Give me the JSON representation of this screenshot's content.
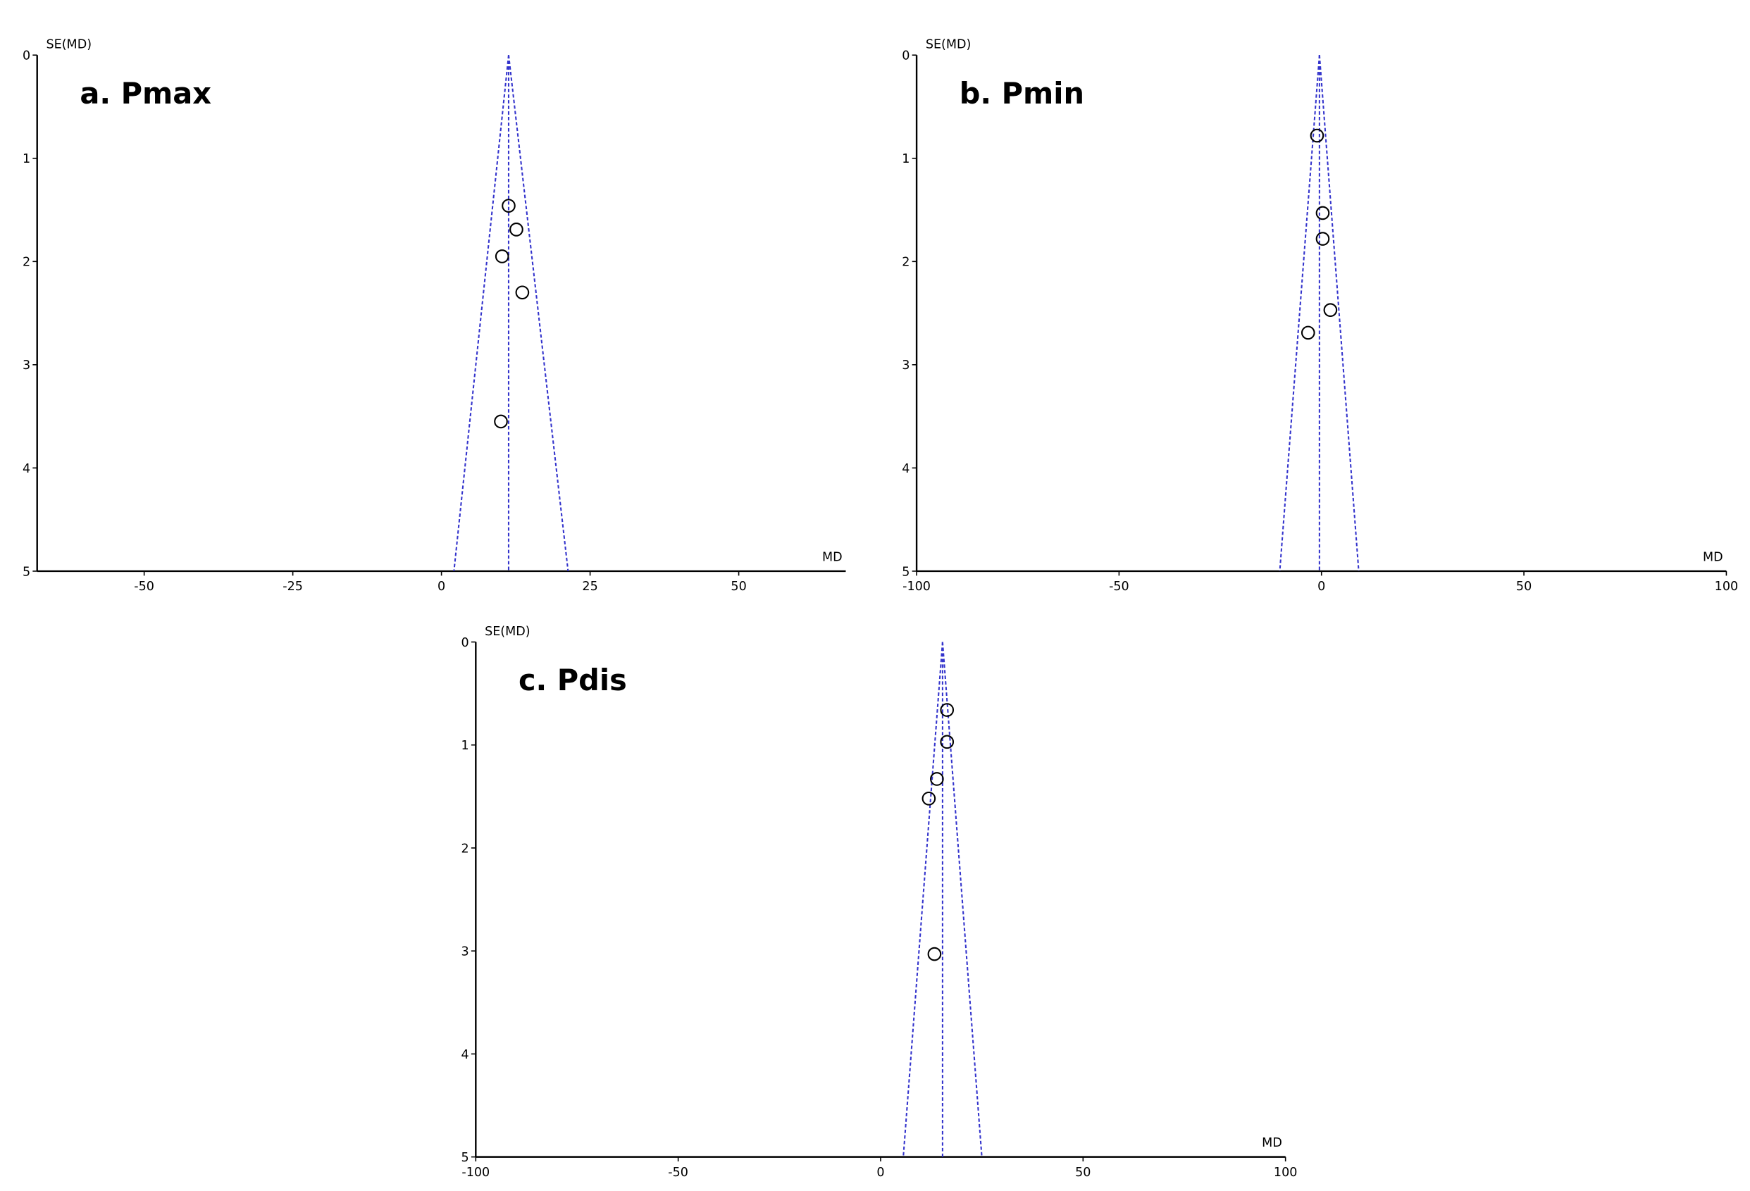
{
  "chart_data": [
    {
      "type": "funnel",
      "title": "a. Pmax",
      "x_label": "MD",
      "y_label": "SE(MD)",
      "xlim": [
        -68,
        68
      ],
      "xticks": [
        -50,
        -25,
        0,
        25,
        50
      ],
      "ylim": [
        0,
        5
      ],
      "yticks": [
        0,
        1,
        2,
        3,
        4,
        5
      ],
      "y_inverted": true,
      "pooled": 11.3,
      "funnel_base": [
        2.1,
        21.3
      ],
      "line_color": "#3333cc",
      "marker_color": "#000000",
      "x": [
        11.3,
        12.6,
        10.2,
        13.6,
        10.0
      ],
      "y": [
        1.46,
        1.69,
        1.95,
        2.3,
        3.55
      ]
    },
    {
      "type": "funnel",
      "title": "b. Pmin",
      "x_label": "MD",
      "y_label": "SE(MD)",
      "xlim": [
        -100,
        100
      ],
      "xticks": [
        -100,
        -50,
        0,
        50,
        100
      ],
      "ylim": [
        0,
        5
      ],
      "yticks": [
        0,
        1,
        2,
        3,
        4,
        5
      ],
      "y_inverted": true,
      "pooled": -0.5,
      "funnel_base": [
        -10.3,
        9.2
      ],
      "line_color": "#3333cc",
      "marker_color": "#000000",
      "x": [
        -1.1,
        0.3,
        0.3,
        2.2,
        -3.3
      ],
      "y": [
        0.78,
        1.53,
        1.78,
        2.47,
        2.69
      ]
    },
    {
      "type": "funnel",
      "title": "c. Pdis",
      "x_label": "MD",
      "y_label": "SE(MD)",
      "xlim": [
        -100,
        100
      ],
      "xticks": [
        -100,
        -50,
        0,
        50,
        100
      ],
      "ylim": [
        0,
        5
      ],
      "yticks": [
        0,
        1,
        2,
        3,
        4,
        5
      ],
      "y_inverted": true,
      "pooled": 15.3,
      "funnel_base": [
        5.6,
        25.0
      ],
      "line_color": "#3333cc",
      "marker_color": "#000000",
      "x": [
        16.4,
        16.4,
        13.9,
        11.9,
        13.3
      ],
      "y": [
        0.66,
        0.97,
        1.33,
        1.52,
        3.03
      ]
    }
  ]
}
